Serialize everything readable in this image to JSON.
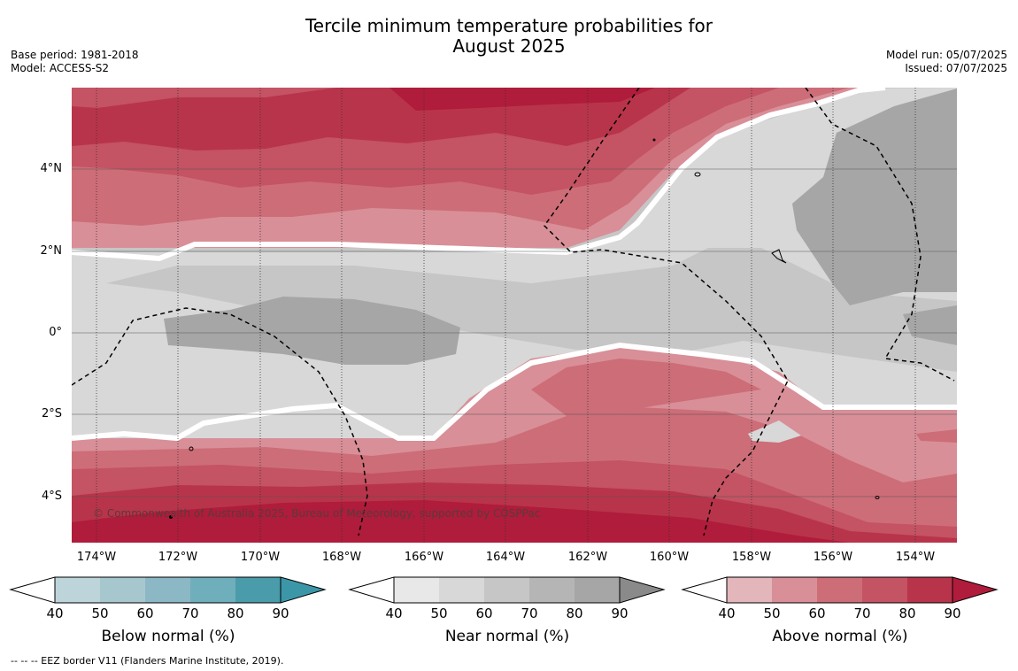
{
  "title_line1": "Tercile minimum temperature probabilities for",
  "title_line2": "August 2025",
  "meta_left": [
    "Base period: 1981-2018",
    "Model: ACCESS-S2"
  ],
  "meta_right": [
    "Model run: 05/07/2025",
    "Issued: 07/07/2025"
  ],
  "lat_labels": [
    "4°N",
    "2°N",
    "0°",
    "2°S",
    "4°S"
  ],
  "lon_labels": [
    "174°W",
    "172°W",
    "170°W",
    "168°W",
    "166°W",
    "164°W",
    "162°W",
    "160°W",
    "158°W",
    "156°W",
    "154°W"
  ],
  "copyright": "© Commonwealth of Australia 2025, Bureau of Meteorology, supported by COSPPac",
  "footnote": "--  --  -- EEZ border V11 (Flanders Marine Institute, 2019).",
  "colorbars": [
    {
      "label": "Below normal (%)",
      "ticks": [
        "40",
        "50",
        "60",
        "70",
        "80",
        "90"
      ],
      "colors": [
        "#bdd4db",
        "#a7c7ce",
        "#8bb8c4",
        "#6faebb",
        "#4a9cab",
        "#3b97a8"
      ]
    },
    {
      "label": "Near normal (%)",
      "ticks": [
        "40",
        "50",
        "60",
        "70",
        "80",
        "90"
      ],
      "colors": [
        "#e8e8e8",
        "#d8d8d8",
        "#c6c6c6",
        "#b5b5b5",
        "#a6a6a6",
        "#8a8a8a"
      ]
    },
    {
      "label": "Above normal (%)",
      "ticks": [
        "40",
        "50",
        "60",
        "70",
        "80",
        "90"
      ],
      "colors": [
        "#e3b6bc",
        "#d88f98",
        "#cd6d78",
        "#c45363",
        "#b8344a",
        "#b01c3b"
      ]
    }
  ],
  "map_colors": {
    "above_90": "#b01c3b",
    "above_80": "#b8344a",
    "above_70": "#c45363",
    "above_60": "#cd6d78",
    "above_50": "#d88f98",
    "above_40": "#e3b6bc",
    "near_40": "#d8d8d8",
    "near_50": "#c6c6c6",
    "near_60": "#a6a6a6"
  }
}
